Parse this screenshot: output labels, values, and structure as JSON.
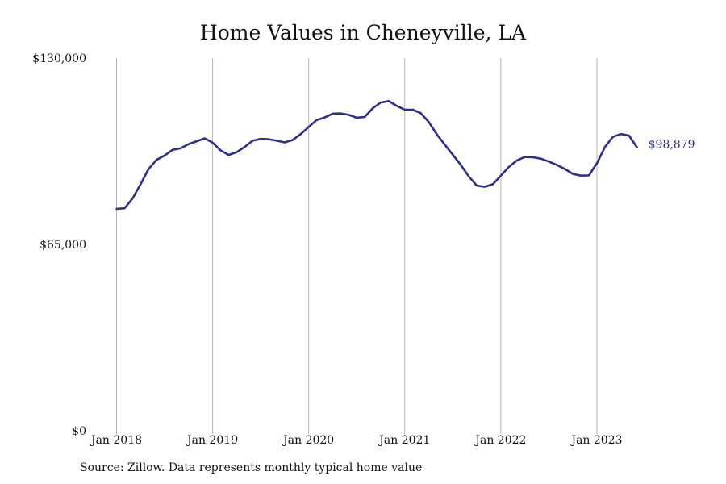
{
  "chart_data": {
    "type": "line",
    "title": "Home Values in Cheneyville, LA",
    "source": "Source: Zillow. Data represents monthly typical home value",
    "ylim": [
      0,
      130000
    ],
    "y_ticks": [
      {
        "value": 0,
        "label": "$0"
      },
      {
        "value": 65000,
        "label": "$65,000"
      },
      {
        "value": 130000,
        "label": "$130,000"
      }
    ],
    "x_ticks": [
      "Jan 2018",
      "Jan 2019",
      "Jan 2020",
      "Jan 2021",
      "Jan 2022",
      "Jan 2023"
    ],
    "grid": "vertical",
    "line_color": "#2e2f8c",
    "last_value_label": "$98,879",
    "series": [
      {
        "x": [
          "2018-01",
          "2018-02",
          "2018-03",
          "2018-04",
          "2018-05",
          "2018-06",
          "2018-07",
          "2018-08",
          "2018-09",
          "2018-10",
          "2018-11",
          "2018-12",
          "2019-01",
          "2019-02",
          "2019-03",
          "2019-04",
          "2019-05",
          "2019-06",
          "2019-07",
          "2019-08",
          "2019-09",
          "2019-10",
          "2019-11",
          "2019-12",
          "2020-01",
          "2020-02",
          "2020-03",
          "2020-04",
          "2020-05",
          "2020-06",
          "2020-07",
          "2020-08",
          "2020-09",
          "2020-10",
          "2020-11",
          "2020-12",
          "2021-01",
          "2021-02",
          "2021-03",
          "2021-04",
          "2021-05",
          "2021-06",
          "2021-07",
          "2021-08",
          "2021-09",
          "2021-10",
          "2021-11",
          "2021-12",
          "2022-01",
          "2022-02",
          "2022-03",
          "2022-04",
          "2022-05",
          "2022-06",
          "2022-07",
          "2022-08",
          "2022-09",
          "2022-10",
          "2022-11",
          "2022-12",
          "2023-01",
          "2023-02",
          "2023-03",
          "2023-04",
          "2023-05",
          "2023-06"
        ],
        "y": [
          77400,
          77600,
          81000,
          86000,
          91300,
          94500,
          96000,
          98000,
          98500,
          100000,
          101000,
          102000,
          100500,
          97800,
          96200,
          97200,
          99000,
          101200,
          101800,
          101700,
          101200,
          100600,
          101400,
          103500,
          106000,
          108400,
          109300,
          110600,
          110700,
          110200,
          109200,
          109500,
          112500,
          114500,
          115000,
          113300,
          112000,
          112000,
          110800,
          107700,
          103400,
          99800,
          96300,
          92700,
          88700,
          85500,
          85100,
          86000,
          89000,
          92000,
          94300,
          95500,
          95400,
          94900,
          93900,
          92700,
          91300,
          89600,
          89000,
          89100,
          93300,
          99000,
          102500,
          103500,
          103000,
          98879
        ]
      }
    ]
  }
}
